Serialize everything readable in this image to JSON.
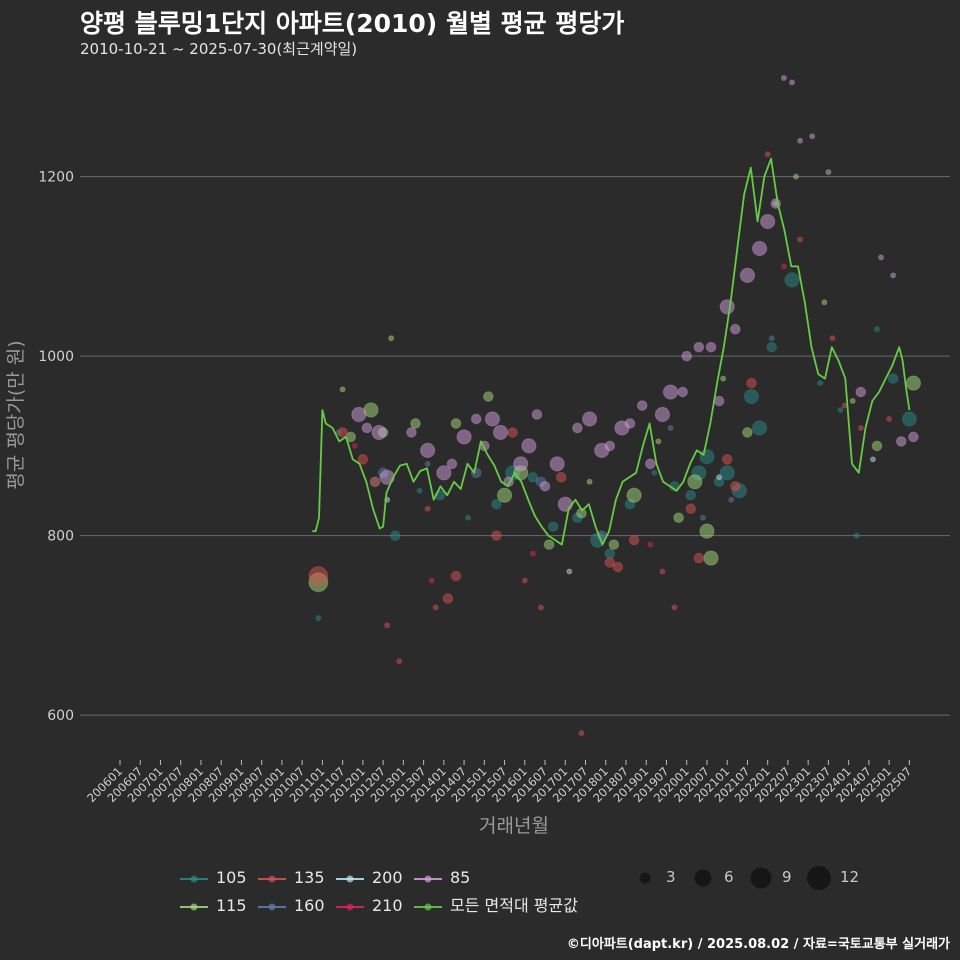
{
  "header": {
    "title": "양평 블루밍1단지 아파트(2010) 월별 평균 평당가",
    "subtitle": "2010-10-21 ~ 2025-07-30(최근계약일)"
  },
  "caption": "©디아파트(dapt.kr) / 2025.08.02 / 자료=국토교통부 실거래가",
  "colors": {
    "background": "#2b2b2c",
    "grid": "#6a6a6a",
    "avg_line": "#66cc44",
    "a105": "#2a8a86",
    "a115": "#a3d97a",
    "a135": "#d9534f",
    "a160": "#5d7fa8",
    "a200": "#bfe6f5",
    "a210": "#e0245e",
    "a85": "#d29fd9"
  },
  "chart_data": {
    "type": "scatter+line",
    "xlabel": "거래년월",
    "ylabel": "평균 평당가(만 원)",
    "ylim": [
      550,
      1330
    ],
    "yticks": [
      600,
      800,
      1000,
      1200
    ],
    "xlim": [
      "2006-01",
      "2025-07"
    ],
    "xtick_labels": [
      "200601",
      "200607",
      "200701",
      "200707",
      "200801",
      "200807",
      "200901",
      "200907",
      "201001",
      "201007",
      "201101",
      "201107",
      "201201",
      "201207",
      "201301",
      "201307",
      "201401",
      "201407",
      "201501",
      "201507",
      "201601",
      "201607",
      "201701",
      "201707",
      "201801",
      "201807",
      "201901",
      "201907",
      "202001",
      "202007",
      "202101",
      "202107",
      "202201",
      "202207",
      "202301",
      "202307",
      "202401",
      "202407",
      "202501",
      "202507"
    ],
    "legend_areas": [
      {
        "label": "105",
        "color": "#2a8a86"
      },
      {
        "label": "115",
        "color": "#a3d97a"
      },
      {
        "label": "135",
        "color": "#d9534f"
      },
      {
        "label": "160",
        "color": "#5d7fa8"
      },
      {
        "label": "200",
        "color": "#bfe6f5"
      },
      {
        "label": "210",
        "color": "#e0245e"
      },
      {
        "label": "85",
        "color": "#d29fd9"
      },
      {
        "label": "모든 면적대 평균값",
        "color": "#66cc44"
      }
    ],
    "legend_sizes": [
      3,
      6,
      9,
      12
    ],
    "avg_series": {
      "name": "모든 면적대 평균값",
      "x": [
        "2010-10",
        "2010-11",
        "2010-12",
        "2011-01",
        "2011-02",
        "2011-04",
        "2011-06",
        "2011-08",
        "2011-10",
        "2011-12",
        "2012-02",
        "2012-04",
        "2012-06",
        "2012-07",
        "2012-08",
        "2012-10",
        "2012-12",
        "2013-02",
        "2013-04",
        "2013-06",
        "2013-08",
        "2013-10",
        "2013-12",
        "2014-02",
        "2014-04",
        "2014-06",
        "2014-08",
        "2014-10",
        "2014-12",
        "2015-02",
        "2015-04",
        "2015-06",
        "2015-08",
        "2015-10",
        "2015-12",
        "2016-02",
        "2016-04",
        "2016-06",
        "2016-08",
        "2016-10",
        "2016-12",
        "2017-02",
        "2017-04",
        "2017-06",
        "2017-08",
        "2017-10",
        "2017-12",
        "2018-02",
        "2018-04",
        "2018-06",
        "2018-08",
        "2018-10",
        "2018-12",
        "2019-02",
        "2019-04",
        "2019-06",
        "2019-08",
        "2019-10",
        "2019-12",
        "2020-02",
        "2020-04",
        "2020-06",
        "2020-08",
        "2020-10",
        "2020-12",
        "2021-02",
        "2021-04",
        "2021-06",
        "2021-08",
        "2021-10",
        "2021-12",
        "2022-02",
        "2022-04",
        "2022-06",
        "2022-08",
        "2022-10",
        "2022-12",
        "2023-02",
        "2023-04",
        "2023-06",
        "2023-08",
        "2023-10",
        "2023-12",
        "2024-02",
        "2024-04",
        "2024-06",
        "2024-08",
        "2024-10",
        "2024-12",
        "2025-02",
        "2025-04",
        "2025-05",
        "2025-06",
        "2025-07"
      ],
      "values": [
        805,
        805,
        820,
        940,
        925,
        920,
        905,
        910,
        885,
        880,
        860,
        830,
        808,
        810,
        848,
        865,
        878,
        880,
        860,
        872,
        875,
        840,
        855,
        845,
        860,
        852,
        880,
        870,
        905,
        890,
        878,
        860,
        855,
        870,
        860,
        840,
        822,
        810,
        800,
        795,
        790,
        830,
        840,
        828,
        835,
        810,
        790,
        805,
        840,
        860,
        865,
        870,
        900,
        925,
        880,
        860,
        855,
        850,
        860,
        880,
        895,
        890,
        925,
        970,
        1010,
        1060,
        1120,
        1180,
        1210,
        1150,
        1200,
        1220,
        1170,
        1140,
        1100,
        1100,
        1060,
        1010,
        980,
        975,
        1010,
        995,
        975,
        880,
        870,
        920,
        950,
        960,
        975,
        990,
        1010,
        995,
        965,
        940
      ]
    },
    "scatter_series": [
      {
        "name": "105",
        "points": [
          [
            2010.9,
            708,
            1
          ],
          [
            2011.4,
            915,
            1
          ],
          [
            2012.3,
            860,
            2
          ],
          [
            2012.8,
            800,
            2
          ],
          [
            2013.4,
            850,
            1
          ],
          [
            2013.9,
            845,
            2
          ],
          [
            2014.6,
            820,
            1
          ],
          [
            2015.3,
            835,
            2
          ],
          [
            2015.7,
            870,
            3
          ],
          [
            2016.2,
            865,
            2
          ],
          [
            2016.7,
            810,
            2
          ],
          [
            2017.3,
            820,
            2
          ],
          [
            2017.8,
            795,
            3
          ],
          [
            2018.1,
            780,
            2
          ],
          [
            2018.6,
            835,
            2
          ],
          [
            2019.2,
            870,
            1
          ],
          [
            2019.7,
            855,
            2
          ],
          [
            2020.1,
            845,
            2
          ],
          [
            2020.3,
            870,
            3
          ],
          [
            2020.5,
            888,
            3
          ],
          [
            2020.8,
            860,
            2
          ],
          [
            2021.0,
            870,
            3
          ],
          [
            2021.3,
            850,
            3
          ],
          [
            2021.6,
            955,
            3
          ],
          [
            2021.8,
            920,
            3
          ],
          [
            2022.1,
            1010,
            2
          ],
          [
            2022.6,
            1085,
            3
          ],
          [
            2023.3,
            970,
            1
          ],
          [
            2023.8,
            940,
            1
          ],
          [
            2024.2,
            800,
            1
          ],
          [
            2024.7,
            1030,
            1
          ],
          [
            2025.1,
            975,
            2
          ],
          [
            2025.5,
            930,
            3
          ]
        ]
      },
      {
        "name": "115",
        "points": [
          [
            2010.9,
            748,
            4
          ],
          [
            2011.5,
            963,
            1
          ],
          [
            2011.7,
            910,
            2
          ],
          [
            2012.2,
            940,
            3
          ],
          [
            2012.5,
            915,
            2
          ],
          [
            2012.7,
            1020,
            1
          ],
          [
            2013.3,
            925,
            2
          ],
          [
            2014.3,
            925,
            2
          ],
          [
            2015.1,
            955,
            2
          ],
          [
            2015.5,
            845,
            3
          ],
          [
            2015.9,
            870,
            3
          ],
          [
            2016.6,
            790,
            2
          ],
          [
            2017.4,
            825,
            2
          ],
          [
            2017.6,
            860,
            1
          ],
          [
            2018.2,
            790,
            2
          ],
          [
            2018.7,
            845,
            3
          ],
          [
            2019.3,
            905,
            1
          ],
          [
            2019.8,
            820,
            2
          ],
          [
            2020.2,
            860,
            3
          ],
          [
            2020.5,
            805,
            3
          ],
          [
            2020.6,
            775,
            3
          ],
          [
            2020.9,
            975,
            1
          ],
          [
            2021.5,
            915,
            2
          ],
          [
            2022.2,
            1170,
            1
          ],
          [
            2022.7,
            1200,
            1
          ],
          [
            2023.4,
            1060,
            1
          ],
          [
            2024.1,
            950,
            1
          ],
          [
            2024.7,
            900,
            2
          ],
          [
            2025.6,
            970,
            3
          ]
        ]
      },
      {
        "name": "135",
        "points": [
          [
            2010.9,
            755,
            4
          ],
          [
            2011.5,
            915,
            2
          ],
          [
            2012.0,
            885,
            2
          ],
          [
            2012.3,
            860,
            2
          ],
          [
            2012.6,
            700,
            1
          ],
          [
            2012.9,
            660,
            1
          ],
          [
            2013.6,
            830,
            1
          ],
          [
            2013.8,
            720,
            1
          ],
          [
            2014.1,
            730,
            2
          ],
          [
            2014.3,
            755,
            2
          ],
          [
            2015.3,
            800,
            2
          ],
          [
            2015.7,
            915,
            2
          ],
          [
            2016.0,
            750,
            1
          ],
          [
            2016.4,
            720,
            1
          ],
          [
            2016.9,
            865,
            2
          ],
          [
            2017.4,
            580,
            1
          ],
          [
            2018.1,
            770,
            2
          ],
          [
            2018.3,
            765,
            2
          ],
          [
            2018.7,
            795,
            2
          ],
          [
            2019.4,
            760,
            1
          ],
          [
            2019.7,
            720,
            1
          ],
          [
            2020.1,
            830,
            2
          ],
          [
            2020.3,
            775,
            2
          ],
          [
            2021.0,
            885,
            2
          ],
          [
            2021.2,
            855,
            2
          ],
          [
            2021.6,
            970,
            2
          ],
          [
            2022.0,
            1225,
            1
          ],
          [
            2022.8,
            1130,
            1
          ],
          [
            2023.6,
            1020,
            1
          ],
          [
            2023.9,
            945,
            1
          ],
          [
            2024.3,
            920,
            1
          ],
          [
            2025.0,
            930,
            1
          ]
        ]
      },
      {
        "name": "160",
        "points": [
          [
            2012.5,
            870,
            2
          ],
          [
            2013.6,
            880,
            1
          ],
          [
            2014.8,
            870,
            2
          ],
          [
            2016.4,
            860,
            2
          ],
          [
            2017.9,
            800,
            2
          ],
          [
            2019.6,
            920,
            1
          ],
          [
            2020.4,
            820,
            1
          ],
          [
            2021.1,
            840,
            1
          ],
          [
            2022.1,
            1020,
            1
          ]
        ]
      },
      {
        "name": "200",
        "points": [
          [
            2012.6,
            840,
            1
          ],
          [
            2017.1,
            760,
            1
          ],
          [
            2020.8,
            865,
            1
          ],
          [
            2024.6,
            885,
            1
          ]
        ]
      },
      {
        "name": "210",
        "points": [
          [
            2011.8,
            900,
            1
          ],
          [
            2013.7,
            750,
            1
          ],
          [
            2016.2,
            780,
            1
          ],
          [
            2019.1,
            790,
            1
          ],
          [
            2022.4,
            1100,
            1
          ]
        ]
      },
      {
        "name": "85",
        "points": [
          [
            2011.9,
            935,
            3
          ],
          [
            2012.1,
            920,
            2
          ],
          [
            2012.4,
            915,
            3
          ],
          [
            2012.6,
            865,
            3
          ],
          [
            2013.2,
            915,
            2
          ],
          [
            2013.6,
            895,
            3
          ],
          [
            2014.0,
            870,
            3
          ],
          [
            2014.2,
            880,
            2
          ],
          [
            2014.5,
            910,
            3
          ],
          [
            2014.8,
            930,
            2
          ],
          [
            2015.0,
            900,
            2
          ],
          [
            2015.2,
            930,
            3
          ],
          [
            2015.4,
            915,
            3
          ],
          [
            2015.6,
            860,
            2
          ],
          [
            2015.9,
            880,
            3
          ],
          [
            2016.1,
            900,
            3
          ],
          [
            2016.3,
            935,
            2
          ],
          [
            2016.5,
            855,
            2
          ],
          [
            2016.8,
            880,
            3
          ],
          [
            2017.0,
            835,
            3
          ],
          [
            2017.3,
            920,
            2
          ],
          [
            2017.6,
            930,
            3
          ],
          [
            2017.9,
            895,
            3
          ],
          [
            2018.1,
            900,
            2
          ],
          [
            2018.4,
            920,
            3
          ],
          [
            2018.6,
            925,
            2
          ],
          [
            2018.9,
            945,
            2
          ],
          [
            2019.1,
            880,
            2
          ],
          [
            2019.4,
            935,
            3
          ],
          [
            2019.6,
            960,
            3
          ],
          [
            2019.9,
            960,
            2
          ],
          [
            2020.0,
            1000,
            2
          ],
          [
            2020.3,
            1010,
            2
          ],
          [
            2020.6,
            1010,
            2
          ],
          [
            2020.8,
            950,
            2
          ],
          [
            2021.0,
            1055,
            3
          ],
          [
            2021.2,
            1030,
            2
          ],
          [
            2021.5,
            1090,
            3
          ],
          [
            2021.8,
            1120,
            3
          ],
          [
            2022.0,
            1150,
            3
          ],
          [
            2022.2,
            1170,
            2
          ],
          [
            2022.4,
            1310,
            1
          ],
          [
            2022.6,
            1305,
            1
          ],
          [
            2022.8,
            1240,
            1
          ],
          [
            2023.1,
            1245,
            1
          ],
          [
            2023.5,
            1205,
            1
          ],
          [
            2024.3,
            960,
            2
          ],
          [
            2024.8,
            1110,
            1
          ],
          [
            2025.1,
            1090,
            1
          ],
          [
            2025.3,
            905,
            2
          ],
          [
            2025.6,
            910,
            2
          ]
        ]
      }
    ]
  }
}
